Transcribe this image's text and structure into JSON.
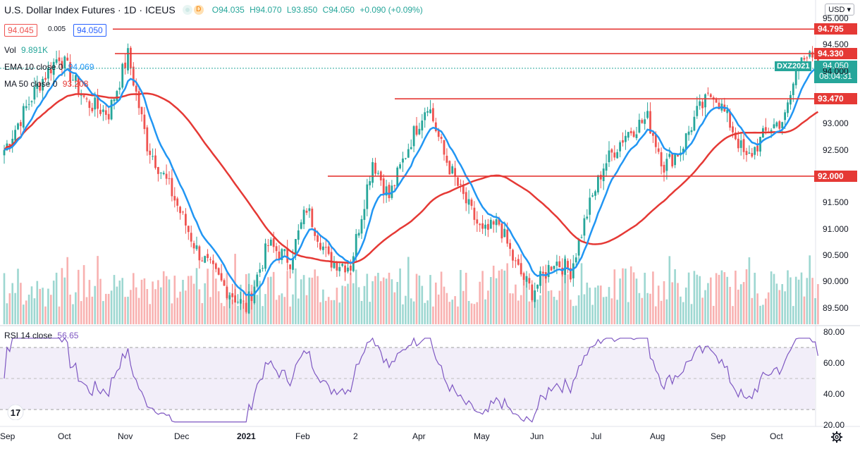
{
  "header": {
    "title": "U.S. Dollar Index Futures · 1D · ICEUS",
    "badge_d": "D",
    "open": "O94.035",
    "high": "H94.070",
    "low": "L93.850",
    "close": "C94.050",
    "change": "+0.090 (+0.09%)"
  },
  "price_boxes": {
    "bid": "94.045",
    "spread": "0.005",
    "ask": "94.050"
  },
  "legend": {
    "vol_label": "Vol",
    "vol_value": "9.891K",
    "ema_label": "EMA 10 close 0",
    "ema_value": "94.069",
    "ma_label": "MA 50 close 0",
    "ma_value": "93.208",
    "rsi_label": "RSI 14 close",
    "rsi_value": "56.65"
  },
  "currency_button": "USD",
  "current_price": {
    "symbol": "DXZ2021",
    "price": "94.050",
    "countdown": "08:04:31"
  },
  "colors": {
    "up": "#26a69a",
    "down": "#ef5350",
    "ema": "#2196f3",
    "ma": "#e53935",
    "rsi": "#7e57c2",
    "levels": "#e53935"
  },
  "chart_data": {
    "type": "candlestick",
    "title": "U.S. Dollar Index Futures · 1D · ICEUS",
    "y_range": [
      89.3,
      95.05
    ],
    "y_ticks": [
      "95.000",
      "94.500",
      "94.000",
      "93.500",
      "93.000",
      "92.500",
      "92.000",
      "91.500",
      "91.000",
      "90.500",
      "90.000",
      "89.500"
    ],
    "x_ticks": [
      "Sep",
      "Oct",
      "Nov",
      "Dec",
      "2021",
      "Feb",
      "2",
      "Apr",
      "May",
      "Jun",
      "Jul",
      "Aug",
      "Sep",
      "Oct"
    ],
    "horizontal_levels": [
      94.795,
      94.33,
      93.47,
      92.0
    ],
    "close_anchors": [
      [
        0,
        92.5
      ],
      [
        12,
        93.7
      ],
      [
        20,
        94.3
      ],
      [
        30,
        93.4
      ],
      [
        38,
        93.2
      ],
      [
        45,
        94.3
      ],
      [
        52,
        92.6
      ],
      [
        60,
        91.8
      ],
      [
        70,
        90.6
      ],
      [
        80,
        89.9
      ],
      [
        88,
        89.5
      ],
      [
        96,
        90.7
      ],
      [
        104,
        90.4
      ],
      [
        110,
        91.4
      ],
      [
        118,
        90.4
      ],
      [
        126,
        90.3
      ],
      [
        134,
        92.3
      ],
      [
        140,
        91.6
      ],
      [
        148,
        92.7
      ],
      [
        154,
        93.4
      ],
      [
        160,
        92.4
      ],
      [
        166,
        91.7
      ],
      [
        174,
        90.9
      ],
      [
        180,
        91.1
      ],
      [
        186,
        90.3
      ],
      [
        192,
        89.8
      ],
      [
        200,
        90.4
      ],
      [
        206,
        90.2
      ],
      [
        212,
        91.3
      ],
      [
        218,
        92.2
      ],
      [
        226,
        92.8
      ],
      [
        234,
        93.1
      ],
      [
        240,
        92.2
      ],
      [
        246,
        92.5
      ],
      [
        252,
        93.2
      ],
      [
        258,
        93.6
      ],
      [
        264,
        93.0
      ],
      [
        270,
        92.3
      ],
      [
        278,
        92.9
      ],
      [
        284,
        93.1
      ],
      [
        290,
        94.4
      ],
      [
        296,
        94.05
      ]
    ],
    "rsi_range": [
      20,
      80
    ],
    "rsi_ticks": [
      "80.00",
      "60.00",
      "40.00",
      "20.00"
    ],
    "rsi_band": [
      30,
      70
    ]
  }
}
